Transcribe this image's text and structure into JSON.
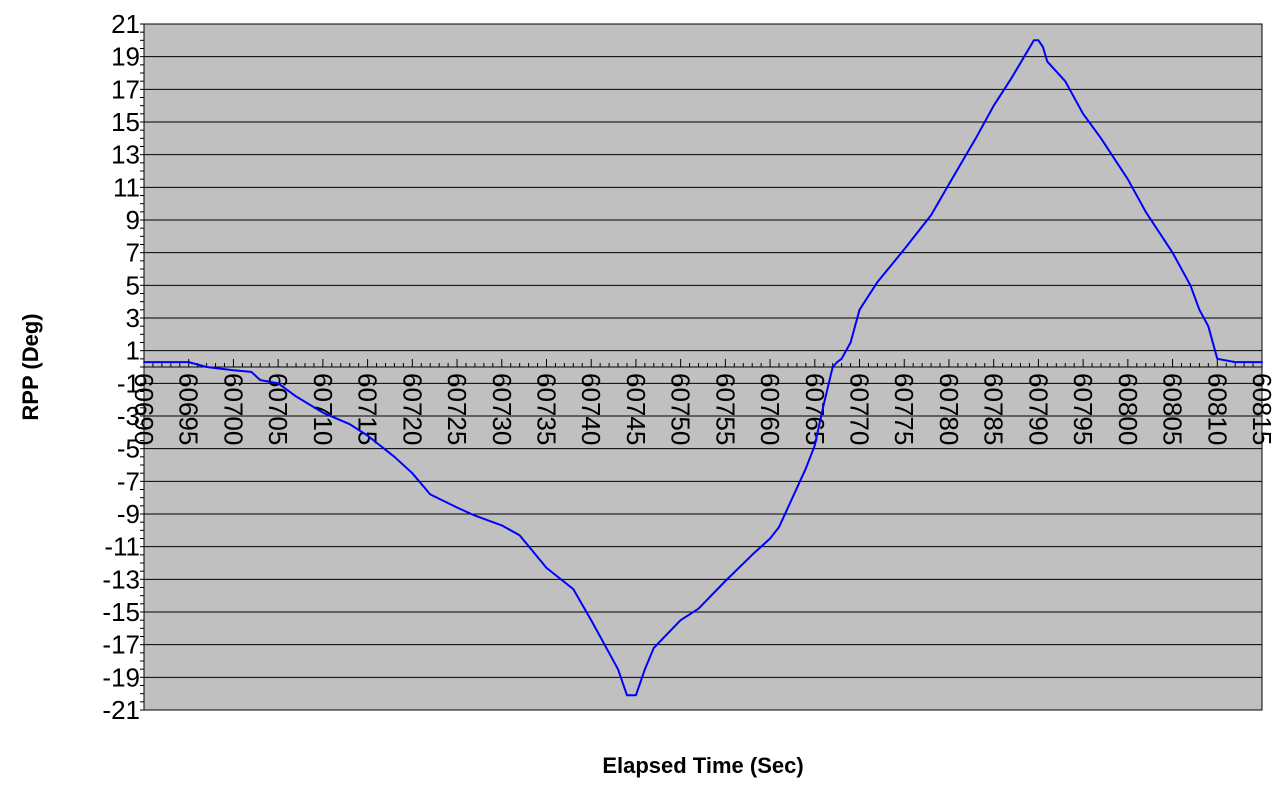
{
  "chart_data": {
    "type": "line",
    "xlabel": "Elapsed Time (Sec)",
    "ylabel": "RPP (Deg)",
    "xlim": [
      60690,
      60815
    ],
    "ylim": [
      -21,
      21
    ],
    "x_ticks": [
      60690,
      60695,
      60700,
      60705,
      60710,
      60715,
      60720,
      60725,
      60730,
      60735,
      60740,
      60745,
      60750,
      60755,
      60760,
      60765,
      60770,
      60775,
      60780,
      60785,
      60790,
      60795,
      60800,
      60805,
      60810,
      60815
    ],
    "y_ticks": [
      21,
      19,
      17,
      15,
      13,
      11,
      9,
      7,
      5,
      3,
      1,
      -1,
      -3,
      -5,
      -7,
      -9,
      -11,
      -13,
      -15,
      -17,
      -19,
      -21
    ],
    "grid": true,
    "plot_background": "#c0c0c0",
    "series": [
      {
        "color": "#0000ff",
        "x": [
          60690,
          60695,
          60697,
          60700,
          60702,
          60703,
          60705,
          60707,
          60710,
          60713,
          60715,
          60718,
          60720,
          60722,
          60725,
          60727,
          60730,
          60732,
          60735,
          60738,
          60740,
          60743,
          60744,
          60745,
          60746,
          60747,
          60750,
          60752,
          60755,
          60758,
          60760,
          60761,
          60761.5,
          60762,
          60764,
          60765,
          60766,
          60767,
          60767.5,
          60768,
          60769,
          60770,
          60772,
          60775,
          60778,
          60780,
          60783,
          60785,
          60787,
          60789.5,
          60790,
          60790.5,
          60791,
          60793,
          60795,
          60797,
          60800,
          60802,
          60805,
          60807,
          60808,
          60808.5,
          60809,
          60810,
          60812,
          60815
        ],
        "y": [
          0.3,
          0.3,
          0.0,
          -0.2,
          -0.3,
          -0.8,
          -1.0,
          -1.8,
          -2.8,
          -3.5,
          -4.2,
          -5.5,
          -6.5,
          -7.8,
          -8.6,
          -9.1,
          -9.7,
          -10.3,
          -12.3,
          -13.6,
          -15.5,
          -18.5,
          -20.1,
          -20.1,
          -18.5,
          -17.2,
          -15.5,
          -14.8,
          -13.1,
          -11.5,
          -10.5,
          -9.8,
          -9.2,
          -8.6,
          -6.2,
          -4.8,
          -2.3,
          0.0,
          0.3,
          0.5,
          1.5,
          3.5,
          5.2,
          7.2,
          9.3,
          11.2,
          14.0,
          16.0,
          17.7,
          20.0,
          20.0,
          19.6,
          18.7,
          17.5,
          15.5,
          14.0,
          11.5,
          9.5,
          7.0,
          5.0,
          3.5,
          3.0,
          2.5,
          0.5,
          0.3,
          0.3
        ]
      }
    ]
  }
}
